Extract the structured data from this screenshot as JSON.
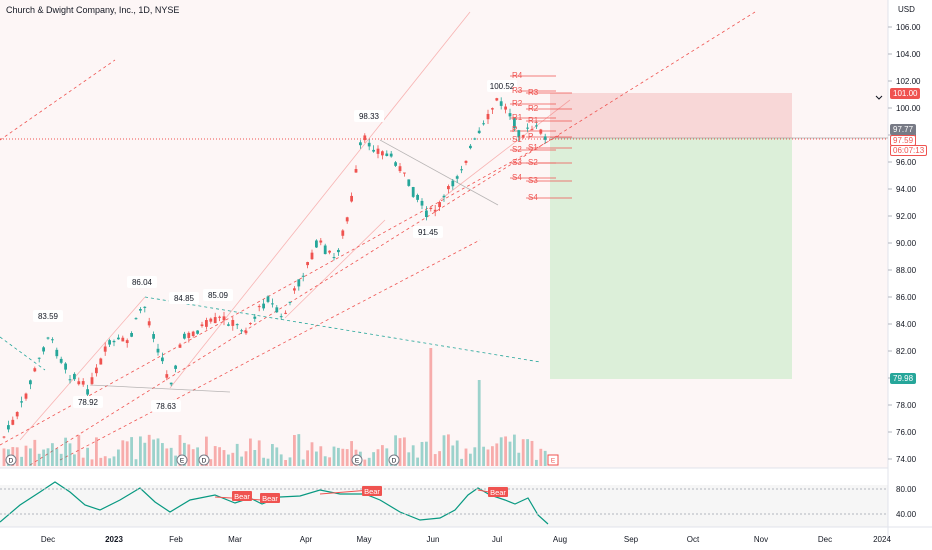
{
  "header": {
    "symbol_title": "Church & Dwight Company, Inc., 1D, NYSE",
    "currency": "USD"
  },
  "price_scale": {
    "ticks": [
      "106.00",
      "104.00",
      "102.00",
      "100.00",
      "98.00",
      "96.00",
      "94.00",
      "92.00",
      "90.00",
      "88.00",
      "86.00",
      "84.00",
      "82.00",
      "80.00",
      "78.00",
      "76.00",
      "74.00"
    ],
    "badges": {
      "target": "101.00",
      "last_a": "97.77",
      "last_b": "97.59",
      "countdown": "06:07:13",
      "stop": "79.98"
    }
  },
  "oscillator": {
    "ticks": [
      "80.00",
      "40.00"
    ]
  },
  "time_axis": {
    "labels": [
      "Dec",
      "2023",
      "Feb",
      "Mar",
      "Apr",
      "May",
      "Jun",
      "Jul",
      "Aug",
      "Sep",
      "Oct",
      "Nov",
      "Dec",
      "2024"
    ]
  },
  "annotations": {
    "swing_points": [
      "83.59",
      "78.92",
      "86.04",
      "78.63",
      "84.85",
      "85.09",
      "98.33",
      "91.45",
      "100.52"
    ],
    "pivots_left": [
      "R4",
      "R3",
      "R2",
      "R1",
      "P",
      "S1",
      "S2",
      "S3",
      "S4"
    ],
    "pivots_right": [
      "R3",
      "R2",
      "R1",
      "P",
      "S1",
      "S2",
      "S3",
      "S4"
    ],
    "bear_labels": [
      "Bear",
      "Bear",
      "Bear",
      "Bear"
    ],
    "event_markers": [
      "D",
      "E",
      "D",
      "E",
      "D",
      "E"
    ]
  },
  "colors": {
    "up": "#26a69a",
    "down": "#ef5350",
    "target_zone": "#f8d7d7",
    "stop_zone": "#dcefd9",
    "oscillator_line": "#089981"
  }
}
